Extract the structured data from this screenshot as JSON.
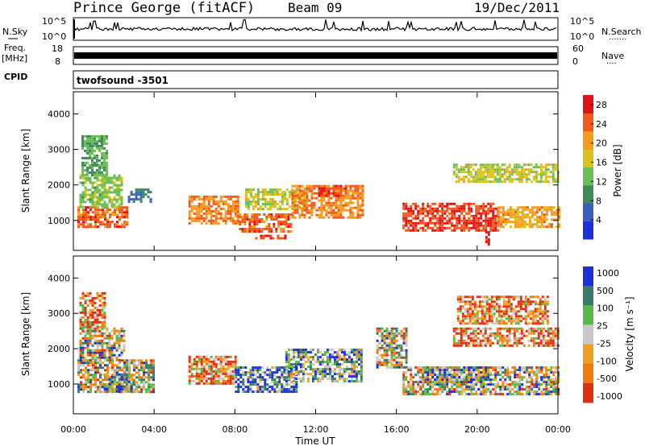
{
  "header": {
    "station": "Prince George (fitACF)",
    "beam": "Beam 09",
    "date": "19/Dec/2011"
  },
  "top_panels": {
    "nsky_label": "N.Sky",
    "nsearch_label": "N.Search",
    "noise_ticks": [
      "10^5",
      "10^0"
    ],
    "freq_label_1": "Freq.",
    "freq_label_2": "[MHz]",
    "freq_ticks": [
      "18",
      "8"
    ],
    "nave_label": "Nave",
    "nave_ticks": [
      "60",
      "0"
    ],
    "cpid_label": "CPID",
    "cpid_value": "twofsound -3501"
  },
  "chart_data": [
    {
      "type": "heatmap",
      "name": "power",
      "xlabel": "Time UT",
      "ylabel": "Slant Range [km]",
      "x_ticks": [
        "00:00",
        "04:00",
        "08:00",
        "12:00",
        "16:00",
        "20:00",
        "00:00"
      ],
      "y_ticks": [
        1000,
        2000,
        3000,
        4000
      ],
      "xlim_hours": [
        0,
        24
      ],
      "ylim_km": [
        180,
        4600
      ],
      "colorbar_label": "Power [dB]",
      "colorbar_ticks": [
        4,
        8,
        12,
        16,
        20,
        24,
        28
      ],
      "colorbar_range": [
        0,
        30
      ],
      "colors": [
        "#1d2fd9",
        "#3b5fbf",
        "#3d8a5c",
        "#6bbf59",
        "#d9c21a",
        "#f59a1a",
        "#f2581a",
        "#e01414"
      ],
      "bands": [
        {
          "t0": 0.2,
          "t1": 2.7,
          "r0": 800,
          "r1": 1400,
          "v": 24
        },
        {
          "t0": 0.3,
          "t1": 2.4,
          "r0": 1400,
          "r1": 2300,
          "v": 14
        },
        {
          "t0": 0.4,
          "t1": 1.6,
          "r0": 2300,
          "r1": 3400,
          "v": 12
        },
        {
          "t0": 2.7,
          "t1": 3.8,
          "r0": 1500,
          "r1": 1900,
          "v": 7
        },
        {
          "t0": 5.7,
          "t1": 8.2,
          "r0": 900,
          "r1": 1700,
          "v": 22
        },
        {
          "t0": 8.2,
          "t1": 10.8,
          "r0": 700,
          "r1": 1200,
          "v": 24
        },
        {
          "t0": 8.5,
          "t1": 11.5,
          "r0": 1300,
          "r1": 1900,
          "v": 16
        },
        {
          "t0": 10.8,
          "t1": 14.3,
          "r0": 1100,
          "r1": 2000,
          "v": 22
        },
        {
          "t0": 12.0,
          "t1": 13.5,
          "r0": 1700,
          "r1": 2000,
          "v": 26
        },
        {
          "t0": 9.0,
          "t1": 10.5,
          "r0": 500,
          "r1": 600,
          "v": 26
        },
        {
          "t0": 16.3,
          "t1": 21.0,
          "r0": 700,
          "r1": 1500,
          "v": 26
        },
        {
          "t0": 21.0,
          "t1": 24.0,
          "r0": 800,
          "r1": 1400,
          "v": 20
        },
        {
          "t0": 18.8,
          "t1": 24.0,
          "r0": 2100,
          "r1": 2600,
          "v": 16
        },
        {
          "t0": 20.4,
          "t1": 20.6,
          "r0": 300,
          "r1": 700,
          "v": 29
        }
      ]
    },
    {
      "type": "heatmap",
      "name": "velocity",
      "xlabel": "Time UT",
      "ylabel": "Slant Range [km]",
      "x_ticks": [
        "00:00",
        "04:00",
        "08:00",
        "12:00",
        "16:00",
        "20:00",
        "00:00"
      ],
      "y_ticks": [
        1000,
        2000,
        3000,
        4000
      ],
      "xlim_hours": [
        0,
        24
      ],
      "ylim_km": [
        180,
        4600
      ],
      "colorbar_label": "Velocity [m s⁻¹]",
      "colorbar_ticks": [
        "1000",
        "500",
        "100",
        "25",
        "-25",
        "-100",
        "-500",
        "-1000"
      ],
      "colors": [
        "#1d2fd9",
        "#3a7a6a",
        "#58b84a",
        "#c8c8c8",
        "#f0a020",
        "#f07a10",
        "#e03010"
      ],
      "bands": [
        {
          "t0": 0.3,
          "t1": 1.6,
          "r0": 2600,
          "r1": 3600,
          "v": 5
        },
        {
          "t0": 0.3,
          "t1": 2.5,
          "r0": 1700,
          "r1": 2600,
          "v": 3
        },
        {
          "t0": 0.2,
          "t1": 4.0,
          "r0": 800,
          "r1": 1700,
          "v": 3
        },
        {
          "t0": 1.5,
          "t1": 3.0,
          "r0": 800,
          "r1": 1300,
          "v": 2
        },
        {
          "t0": 5.7,
          "t1": 8.0,
          "r0": 1000,
          "r1": 1800,
          "v": 5
        },
        {
          "t0": 8.0,
          "t1": 11.0,
          "r0": 800,
          "r1": 1500,
          "v": 1
        },
        {
          "t0": 10.5,
          "t1": 14.3,
          "r0": 1100,
          "r1": 2000,
          "v": 2
        },
        {
          "t0": 15.0,
          "t1": 16.5,
          "r0": 1500,
          "r1": 2600,
          "v": 3
        },
        {
          "t0": 16.3,
          "t1": 24.0,
          "r0": 700,
          "r1": 1500,
          "v": 3
        },
        {
          "t0": 17.5,
          "t1": 20.5,
          "r0": 1000,
          "r1": 1500,
          "v": 2
        },
        {
          "t0": 18.8,
          "t1": 24.0,
          "r0": 2100,
          "r1": 2600,
          "v": 5
        },
        {
          "t0": 19.0,
          "t1": 23.5,
          "r0": 2700,
          "r1": 3500,
          "v": 5
        }
      ]
    }
  ]
}
